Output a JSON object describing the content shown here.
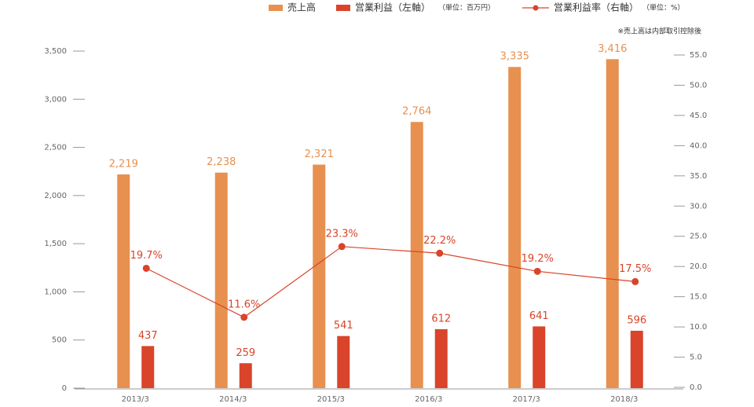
{
  "chart_data": {
    "type": "bar-line",
    "note": "※売上高は内部取引控除後",
    "left_unit": "（単位：百万円）",
    "right_unit": "（単位：%）",
    "categories": [
      "2013/3",
      "2014/3",
      "2015/3",
      "2016/3",
      "2017/3",
      "2018/3"
    ],
    "series": [
      {
        "name": "売上高",
        "type": "bar",
        "color": "#e8904f",
        "values": [
          2219,
          2238,
          2321,
          2764,
          3335,
          3416
        ],
        "value_labels": [
          "2,219",
          "2,238",
          "2,321",
          "2,764",
          "3,335",
          "3,416"
        ]
      },
      {
        "name": "営業利益（左軸）",
        "type": "bar",
        "color": "#d9442a",
        "values": [
          437,
          259,
          541,
          612,
          641,
          596
        ]
      },
      {
        "name": "営業利益率（右軸）",
        "type": "line",
        "axis": "y2",
        "color": "#d9442a",
        "values": [
          19.7,
          11.6,
          23.3,
          22.2,
          19.2,
          17.5
        ],
        "value_labels": [
          "19.7%",
          "11.6%",
          "23.3%",
          "22.2%",
          "19.2%",
          "17.5%"
        ]
      }
    ],
    "ylim": [
      0,
      3500
    ],
    "yticks": [
      0,
      500,
      {
        "value": 1000,
        "label": "1,000"
      },
      {
        "value": 1500,
        "label": "1,500"
      },
      {
        "value": 2000,
        "label": "2,000"
      },
      {
        "value": 2500,
        "label": "2,500"
      },
      {
        "value": 3000,
        "label": "3,000"
      },
      {
        "value": 3500,
        "label": "3,500"
      }
    ],
    "y2lim": [
      0,
      55
    ],
    "y2ticks": [
      {
        "value": 0,
        "label": "0.0"
      },
      {
        "value": 5,
        "label": "5.0"
      },
      {
        "value": 10,
        "label": "10.0"
      },
      {
        "value": 15,
        "label": "15.0"
      },
      {
        "value": 20,
        "label": "20.0"
      },
      {
        "value": 25,
        "label": "25.0"
      },
      {
        "value": 30,
        "label": "30.0"
      },
      {
        "value": 35,
        "label": "35.0"
      },
      {
        "value": 40,
        "label": "40.0"
      },
      {
        "value": 45,
        "label": "45.0"
      },
      {
        "value": 50,
        "label": "50.0"
      },
      {
        "value": 55,
        "label": "55.0"
      }
    ]
  }
}
